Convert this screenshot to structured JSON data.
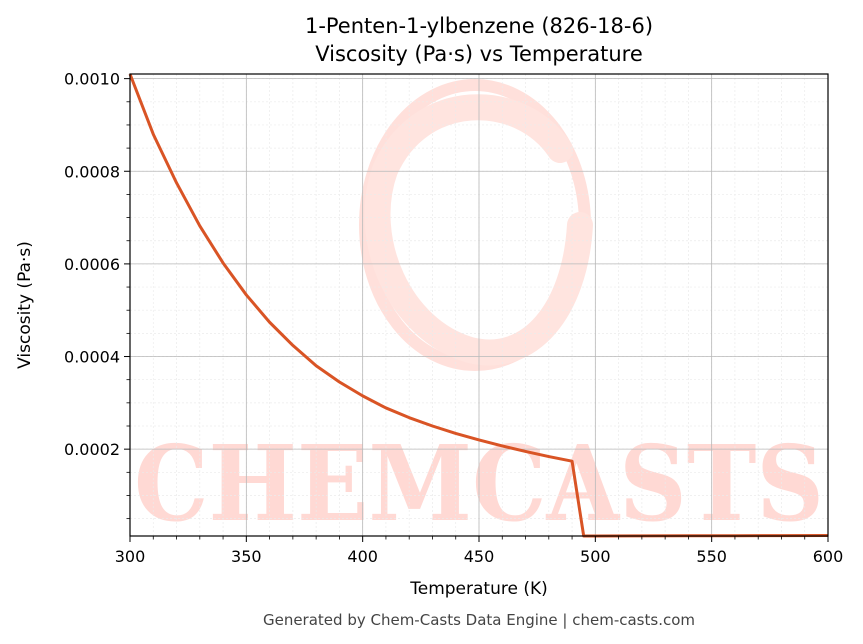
{
  "chart_data": {
    "type": "line",
    "title": "1-Penten-1-ylbenzene (826-18-6)",
    "subtitle": "Viscosity (Pa·s) vs Temperature",
    "xlabel": "Temperature (K)",
    "ylabel": "Viscosity (Pa·s)",
    "xlim": [
      300,
      600
    ],
    "ylim": [
      1.25e-05,
      0.00101
    ],
    "x_ticks": [
      300,
      350,
      400,
      450,
      500,
      550,
      600
    ],
    "x_tick_labels": [
      "300",
      "350",
      "400",
      "450",
      "500",
      "550",
      "600"
    ],
    "y_ticks": [
      0.0002,
      0.0004,
      0.0006,
      0.0008,
      0.001
    ],
    "y_tick_labels": [
      "0.0002",
      "0.0004",
      "0.0006",
      "0.0008",
      "0.0010"
    ],
    "grid": true,
    "minor_grid": true,
    "line_color": "#d95425",
    "series": [
      {
        "x": [
          300,
          310,
          320,
          330,
          340,
          350,
          360,
          370,
          380,
          390,
          400,
          410,
          420,
          430,
          440,
          450,
          460,
          470,
          480,
          490,
          495,
          500,
          520,
          540,
          560,
          580,
          600
        ],
        "values": [
          0.00101,
          0.00088,
          0.000775,
          0.000682,
          0.000602,
          0.000533,
          0.000474,
          0.000424,
          0.00038,
          0.000345,
          0.000315,
          0.000289,
          0.000268,
          0.00025,
          0.000234,
          0.00022,
          0.000207,
          0.000195,
          0.000184,
          0.000174,
          1.25e-05,
          1.25e-05,
          1.27e-05,
          1.29e-05,
          1.31e-05,
          1.33e-05,
          1.35e-05
        ]
      }
    ]
  },
  "watermark": "CHEMCASTS",
  "footer": "Generated by Chem-Casts Data Engine | chem-casts.com"
}
